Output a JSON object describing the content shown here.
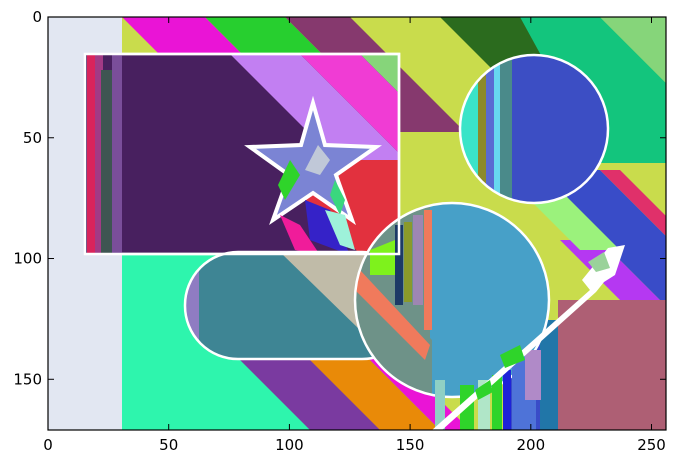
{
  "figure": {
    "x_tick_labels": [
      "0",
      "50",
      "100",
      "150",
      "200",
      "250"
    ],
    "y_tick_labels": [
      "0",
      "50",
      "100",
      "150"
    ]
  },
  "chart_data": {
    "type": "image",
    "title": "",
    "xlabel": "",
    "ylabel": "",
    "xlim": [
      0,
      256
    ],
    "ylim": [
      171,
      0
    ],
    "x_ticks": [
      0,
      50,
      100,
      150,
      200,
      250
    ],
    "y_ticks": [
      0,
      50,
      100,
      150
    ],
    "grid": false,
    "content": "synthetic composition of overlapping colored shapes: diagonal stripes, a rectangle, a star, circles, a rounded bar and an arrow"
  },
  "colors": {
    "background": "#c9dc4c",
    "pale_left_band": "#e2e7f2",
    "mint": "#2ef5ad",
    "purple_stripe": "#7a3aa0",
    "orange_stripe": "#e98a08",
    "magenta": "#ea14d6",
    "green": "#27cf2f",
    "plum": "#86396e",
    "dark_green": "#2b6b1e",
    "sea_green": "#13c57d",
    "light_green": "#86d57a",
    "rect_fill": "#48205f",
    "lilac": "#c27ff2",
    "pink": "#f03cd4",
    "red": "#e2313e",
    "star_fill": "#7b84d4",
    "circle_small": "#3c4ec4",
    "circle_big": "#47a0c8",
    "bar_fill": "#3e8594",
    "arrow_fill": "#ffffff",
    "mauve": "#ae5f74",
    "violet": "#b538f2",
    "blue": "#394cc8",
    "white_outline": "#ffffff"
  }
}
